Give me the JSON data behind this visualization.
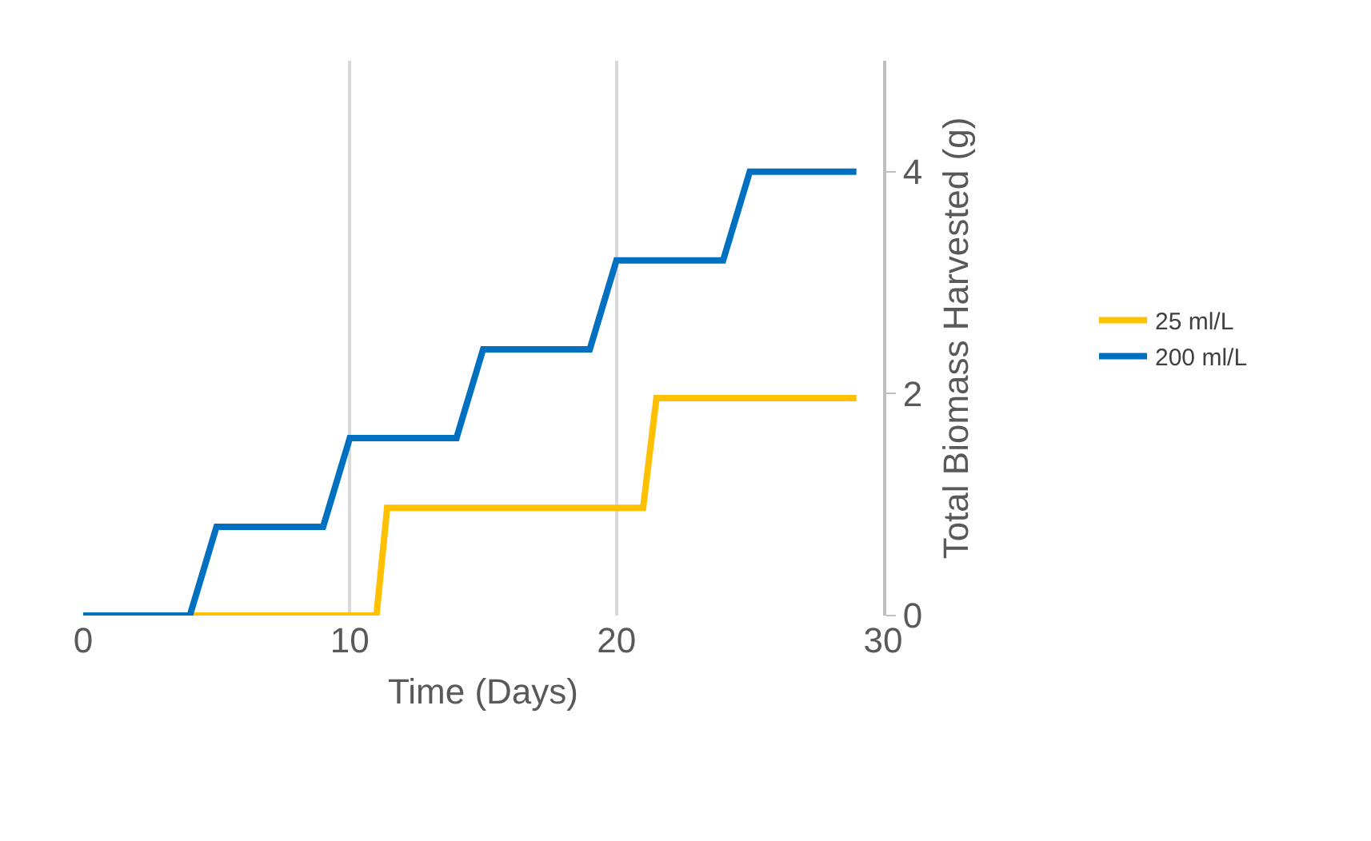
{
  "chart_data": {
    "type": "line",
    "xlabel": "Time (Days)",
    "ylabel": "Total Biomass Harvested (g)",
    "series": [
      {
        "name": "25 ml/L",
        "color": "#ffc000",
        "x": [
          0,
          4,
          11,
          11.4,
          21,
          21.5,
          29
        ],
        "values": [
          0,
          0,
          0,
          0.97,
          0.97,
          1.96,
          1.96
        ]
      },
      {
        "name": "200 ml/L",
        "color": "#0070c0",
        "x": [
          0,
          4,
          5,
          9,
          10,
          14,
          15,
          19,
          20,
          24,
          25,
          29
        ],
        "values": [
          0,
          0,
          0.8,
          0.8,
          1.6,
          1.6,
          2.4,
          2.4,
          3.2,
          3.2,
          4,
          4
        ]
      }
    ],
    "xlim": [
      0,
      30
    ],
    "xticks": [
      0,
      10,
      20,
      30
    ],
    "ylim": [
      0,
      5
    ],
    "yticks": [
      0,
      2,
      4
    ],
    "grid": "x",
    "legend": "right",
    "marker": "none",
    "line_style": "solid"
  }
}
